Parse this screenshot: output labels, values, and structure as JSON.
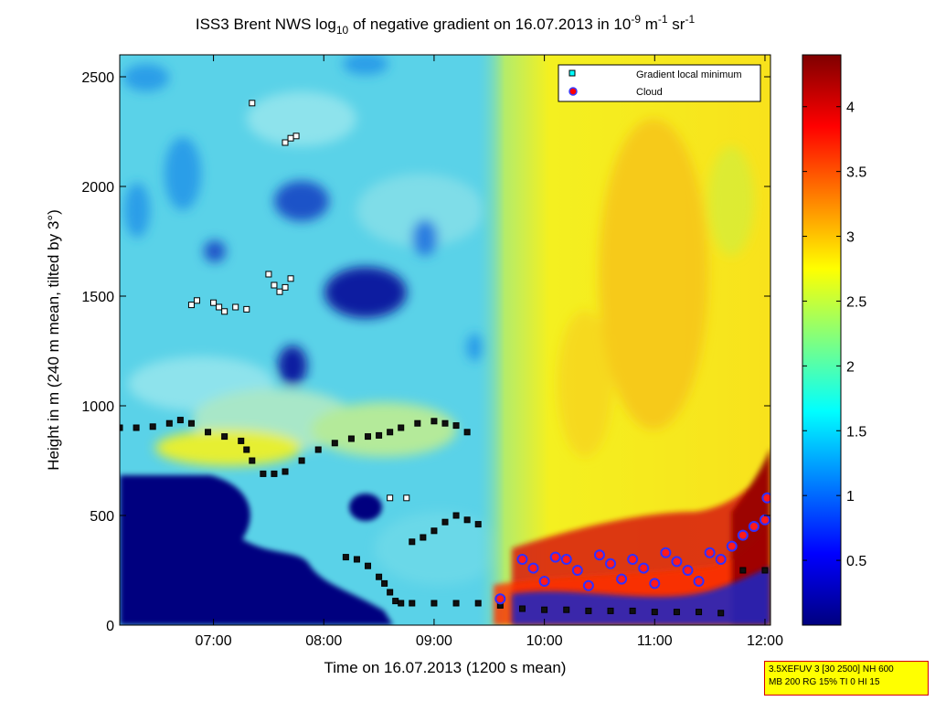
{
  "chart_data": {
    "type": "heatmap",
    "title_parts": {
      "t1": "ISS3 Brent NWS log",
      "t1_sub": "10",
      "t2": " of negative gradient on 16.07.2013 in 10",
      "t2_sup": "-9",
      "t3": " m",
      "t3_sup": "-1",
      "t4": " sr",
      "t4_sup": "-1"
    },
    "xlabel": "Time on 16.07.2013 (1200 s mean)",
    "ylabel": "Height in m (240 m mean, tilted by 3°)",
    "xlim": [
      6.15,
      12.05
    ],
    "ylim": [
      0,
      2600
    ],
    "x_ticks": [
      {
        "v": 7,
        "label": "07:00"
      },
      {
        "v": 8,
        "label": "08:00"
      },
      {
        "v": 9,
        "label": "09:00"
      },
      {
        "v": 10,
        "label": "10:00"
      },
      {
        "v": 11,
        "label": "11:00"
      },
      {
        "v": 12,
        "label": "12:00"
      }
    ],
    "y_ticks": [
      {
        "v": 0,
        "label": "0"
      },
      {
        "v": 500,
        "label": "500"
      },
      {
        "v": 1000,
        "label": "1000"
      },
      {
        "v": 1500,
        "label": "1500"
      },
      {
        "v": 2000,
        "label": "2000"
      },
      {
        "v": 2500,
        "label": "2500"
      }
    ],
    "colorbar": {
      "range": [
        0,
        4.4
      ],
      "ticks": [
        {
          "v": 0.5,
          "label": "0.5"
        },
        {
          "v": 1,
          "label": "1"
        },
        {
          "v": 1.5,
          "label": "1.5"
        },
        {
          "v": 2,
          "label": "2"
        },
        {
          "v": 2.5,
          "label": "2.5"
        },
        {
          "v": 3,
          "label": "3"
        },
        {
          "v": 3.5,
          "label": "3.5"
        },
        {
          "v": 4,
          "label": "4"
        }
      ],
      "colormap": "jet"
    },
    "legend": {
      "position": "top-right",
      "entries": [
        {
          "label": "Gradient local minimum",
          "marker": "square",
          "color": "#00ffff"
        },
        {
          "label": "Cloud",
          "marker": "circle",
          "color": "#ff0000"
        }
      ]
    },
    "field_description_values": {
      "background_log_gradient": 1.8,
      "afternoon_boundary_layer_log_gradient": 2.7
    },
    "series": [
      {
        "name": "Gradient local minimum (main layer)",
        "marker": "square",
        "x": [
          6.15,
          6.3,
          6.45,
          6.6,
          6.7,
          6.8,
          6.95,
          7.1,
          7.25,
          7.3,
          7.35,
          7.45,
          7.55,
          7.65,
          7.8,
          7.95,
          8.1,
          8.25,
          8.4,
          8.5,
          8.6,
          8.7,
          8.85,
          9.0,
          9.1,
          9.2,
          9.3
        ],
        "y": [
          900,
          900,
          905,
          920,
          935,
          920,
          880,
          860,
          840,
          800,
          750,
          690,
          690,
          700,
          750,
          800,
          830,
          850,
          860,
          865,
          880,
          900,
          920,
          930,
          920,
          910,
          880
        ]
      },
      {
        "name": "Gradient local minimum (lower layer)",
        "marker": "square",
        "x": [
          8.2,
          8.3,
          8.4,
          8.5,
          8.55,
          8.6,
          8.65,
          8.7,
          8.8,
          9.0,
          9.2,
          9.4,
          9.6,
          9.8,
          10.0,
          10.2,
          10.4,
          10.6,
          10.8,
          11.0,
          11.2,
          11.4,
          11.6,
          11.8,
          12.0
        ],
        "y": [
          310,
          300,
          270,
          220,
          190,
          150,
          110,
          100,
          100,
          100,
          100,
          100,
          90,
          75,
          70,
          70,
          65,
          65,
          65,
          60,
          60,
          60,
          55,
          250,
          250
        ]
      },
      {
        "name": "Gradient local minimum (rising layer)",
        "marker": "square",
        "x": [
          8.8,
          8.9,
          9.0,
          9.1,
          9.2,
          9.3,
          9.4
        ],
        "y": [
          380,
          400,
          430,
          470,
          500,
          480,
          460
        ]
      },
      {
        "name": "Gradient local minimum (scattered)",
        "marker": "square",
        "x": [
          6.8,
          6.85,
          7.0,
          7.05,
          7.1,
          7.2,
          7.3,
          7.35,
          7.5,
          7.55,
          7.6,
          7.65,
          7.7,
          7.65,
          7.7,
          7.75,
          8.6,
          8.75
        ],
        "y": [
          1460,
          1480,
          1470,
          1450,
          1430,
          1450,
          1440,
          2380,
          1600,
          1550,
          1520,
          1540,
          1580,
          2200,
          2220,
          2230,
          580,
          580
        ]
      },
      {
        "name": "Cloud",
        "marker": "circle",
        "x": [
          9.6,
          9.8,
          9.9,
          10.0,
          10.1,
          10.2,
          10.3,
          10.4,
          10.5,
          10.6,
          10.7,
          10.8,
          10.9,
          11.0,
          11.1,
          11.2,
          11.3,
          11.4,
          11.5,
          11.6,
          11.7,
          11.8,
          11.9,
          12.0,
          12.02
        ],
        "y": [
          120,
          300,
          260,
          200,
          310,
          300,
          250,
          180,
          320,
          280,
          210,
          300,
          260,
          190,
          330,
          290,
          250,
          200,
          330,
          300,
          360,
          410,
          450,
          480,
          580
        ]
      }
    ]
  },
  "info_box": {
    "line1": "3.5XEFUV 3 [30 2500] NH 600",
    "line2": "MB 200 RG 15% TI 0 HI 15"
  }
}
